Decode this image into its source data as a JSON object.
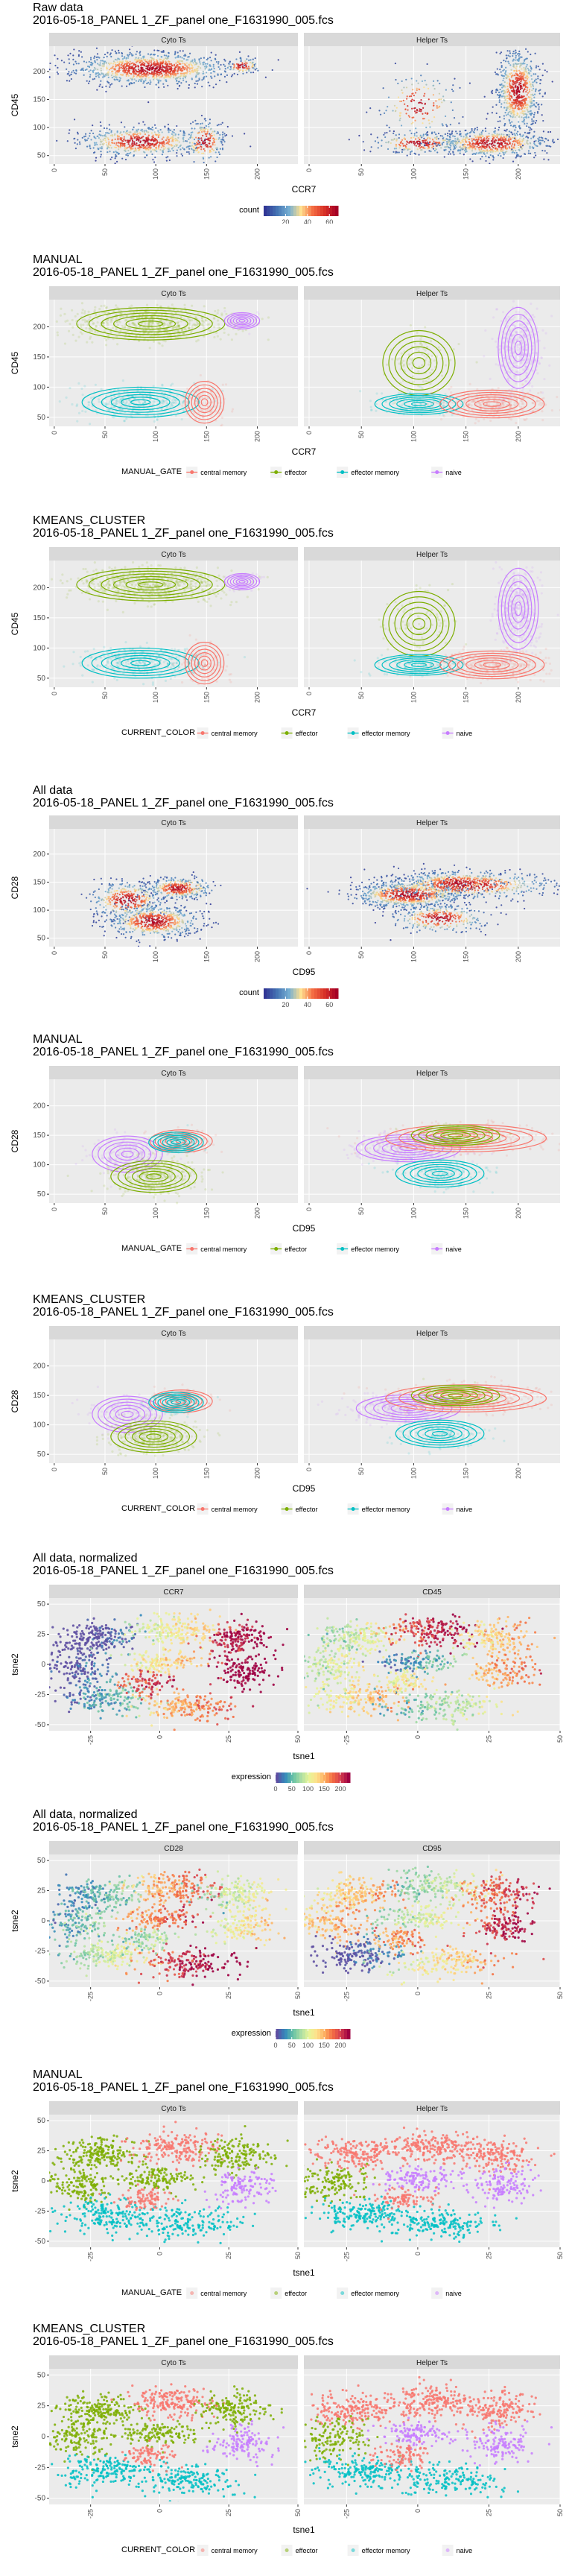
{
  "file_label": "2016-05-18_PANEL 1_ZF_panel one_F1631990_005.fcs",
  "legend_labels": {
    "count": "count",
    "expression": "expression",
    "manual_gate": "MANUAL_GATE",
    "current_color": "CURRENT_COLOR",
    "populations": [
      "central memory",
      "effector",
      "effector memory",
      "naive"
    ]
  },
  "colors": {
    "central memory": "#F8766D",
    "effector": "#7CAE00",
    "effector memory": "#00BFC4",
    "naive": "#C77CFF",
    "panel_bg": "#EBEBEB",
    "strip_bg": "#D9D9D9"
  },
  "chart_data": [
    {
      "type": "scatter",
      "title": "Raw data",
      "subtitle": "2016-05-18_PANEL 1_ZF_panel one_F1631990_005.fcs",
      "xlabel": "CCR7",
      "ylabel": "CD45",
      "xlim": [
        -5,
        240
      ],
      "ylim": [
        35,
        245
      ],
      "x_ticks": [
        0,
        50,
        100,
        150,
        200
      ],
      "y_ticks": [
        50,
        100,
        150,
        200
      ],
      "facets": [
        "Cyto Ts",
        "Helper Ts"
      ],
      "style": "density",
      "legend_title": "count",
      "legend_ticks": [
        20,
        40,
        60
      ],
      "legend_range": [
        0,
        68
      ]
    },
    {
      "type": "scatter",
      "title": "MANUAL",
      "subtitle": "2016-05-18_PANEL 1_ZF_panel one_F1631990_005.fcs",
      "xlabel": "CCR7",
      "ylabel": "CD45",
      "xlim": [
        -5,
        240
      ],
      "ylim": [
        35,
        245
      ],
      "x_ticks": [
        0,
        50,
        100,
        150,
        200
      ],
      "y_ticks": [
        50,
        100,
        150,
        200
      ],
      "facets": [
        "Cyto Ts",
        "Helper Ts"
      ],
      "style": "gate",
      "legend_title": "MANUAL_GATE"
    },
    {
      "type": "scatter",
      "title": "KMEANS_CLUSTER",
      "subtitle": "2016-05-18_PANEL 1_ZF_panel one_F1631990_005.fcs",
      "xlabel": "CCR7",
      "ylabel": "CD45",
      "xlim": [
        -5,
        240
      ],
      "ylim": [
        35,
        245
      ],
      "x_ticks": [
        0,
        50,
        100,
        150,
        200
      ],
      "y_ticks": [
        50,
        100,
        150,
        200
      ],
      "facets": [
        "Cyto Ts",
        "Helper Ts"
      ],
      "style": "gate",
      "legend_title": "CURRENT_COLOR"
    },
    {
      "type": "scatter",
      "title": "All data",
      "subtitle": "2016-05-18_PANEL 1_ZF_panel one_F1631990_005.fcs",
      "xlabel": "CD95",
      "ylabel": "CD28",
      "xlim": [
        -5,
        240
      ],
      "ylim": [
        35,
        245
      ],
      "x_ticks": [
        0,
        50,
        100,
        150,
        200
      ],
      "y_ticks": [
        50,
        100,
        150,
        200
      ],
      "facets": [
        "Cyto Ts",
        "Helper Ts"
      ],
      "style": "density",
      "legend_title": "count",
      "legend_ticks": [
        20,
        40,
        60
      ],
      "legend_range": [
        0,
        68
      ]
    },
    {
      "type": "scatter",
      "title": "MANUAL",
      "subtitle": "2016-05-18_PANEL 1_ZF_panel one_F1631990_005.fcs",
      "xlabel": "CD95",
      "ylabel": "CD28",
      "xlim": [
        -5,
        240
      ],
      "ylim": [
        35,
        245
      ],
      "x_ticks": [
        0,
        50,
        100,
        150,
        200
      ],
      "y_ticks": [
        50,
        100,
        150,
        200
      ],
      "facets": [
        "Cyto Ts",
        "Helper Ts"
      ],
      "style": "gate",
      "legend_title": "MANUAL_GATE"
    },
    {
      "type": "scatter",
      "title": "KMEANS_CLUSTER",
      "subtitle": "2016-05-18_PANEL 1_ZF_panel one_F1631990_005.fcs",
      "xlabel": "CD95",
      "ylabel": "CD28",
      "xlim": [
        -5,
        240
      ],
      "ylim": [
        35,
        245
      ],
      "x_ticks": [
        0,
        50,
        100,
        150,
        200
      ],
      "y_ticks": [
        50,
        100,
        150,
        200
      ],
      "facets": [
        "Cyto Ts",
        "Helper Ts"
      ],
      "style": "gate",
      "legend_title": "CURRENT_COLOR"
    },
    {
      "type": "scatter",
      "title": "All data, normalized",
      "subtitle": "2016-05-18_PANEL 1_ZF_panel one_F1631990_005.fcs",
      "xlabel": "tsne1",
      "ylabel": "tsne2",
      "xlim": [
        -40,
        50
      ],
      "ylim": [
        -55,
        55
      ],
      "x_ticks": [
        -25,
        0,
        25,
        50
      ],
      "y_ticks": [
        -50,
        -25,
        0,
        25,
        50
      ],
      "facets": [
        "CCR7",
        "CD45"
      ],
      "style": "expression",
      "legend_title": "expression",
      "legend_ticks": [
        0,
        50,
        100,
        150,
        200
      ],
      "legend_range": [
        0,
        230
      ]
    },
    {
      "type": "scatter",
      "title": "All data, normalized",
      "subtitle": "2016-05-18_PANEL 1_ZF_panel one_F1631990_005.fcs",
      "xlabel": "tsne1",
      "ylabel": "tsne2",
      "xlim": [
        -40,
        50
      ],
      "ylim": [
        -55,
        55
      ],
      "x_ticks": [
        -25,
        0,
        25,
        50
      ],
      "y_ticks": [
        -50,
        -25,
        0,
        25,
        50
      ],
      "facets": [
        "CD28",
        "CD95"
      ],
      "style": "expression",
      "legend_title": "expression",
      "legend_ticks": [
        0,
        50,
        100,
        150,
        200
      ],
      "legend_range": [
        0,
        230
      ]
    },
    {
      "type": "scatter",
      "title": "MANUAL",
      "subtitle": "2016-05-18_PANEL 1_ZF_panel one_F1631990_005.fcs",
      "xlabel": "tsne1",
      "ylabel": "tsne2",
      "xlim": [
        -40,
        50
      ],
      "ylim": [
        -55,
        55
      ],
      "x_ticks": [
        -25,
        0,
        25,
        50
      ],
      "y_ticks": [
        -50,
        -25,
        0,
        25,
        50
      ],
      "facets": [
        "Cyto Ts",
        "Helper Ts"
      ],
      "style": "tsne_gate",
      "legend_title": "MANUAL_GATE"
    },
    {
      "type": "scatter",
      "title": "KMEANS_CLUSTER",
      "subtitle": "2016-05-18_PANEL 1_ZF_panel one_F1631990_005.fcs",
      "xlabel": "tsne1",
      "ylabel": "tsne2",
      "xlim": [
        -40,
        50
      ],
      "ylim": [
        -55,
        55
      ],
      "x_ticks": [
        -25,
        0,
        25,
        50
      ],
      "y_ticks": [
        -50,
        -25,
        0,
        25,
        50
      ],
      "facets": [
        "Cyto Ts",
        "Helper Ts"
      ],
      "style": "tsne_gate",
      "legend_title": "CURRENT_COLOR"
    }
  ]
}
